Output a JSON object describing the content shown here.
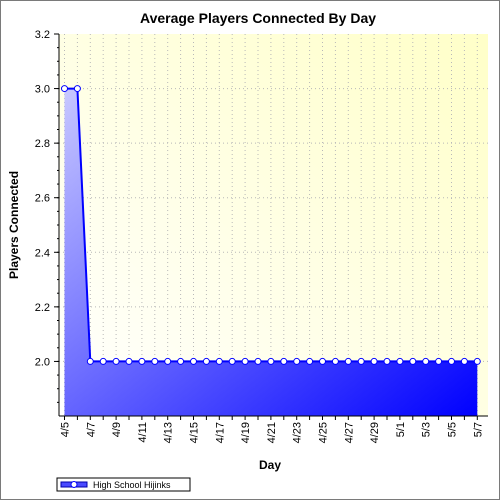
{
  "chart_data": {
    "type": "area",
    "title": "Average Players Connected By Day",
    "xlabel": "Day",
    "ylabel": "Players Connected",
    "ylim": [
      1.8,
      3.2
    ],
    "yticks": [
      "2.0",
      "2.2",
      "2.4",
      "2.6",
      "2.8",
      "3.0",
      "3.2"
    ],
    "x": [
      "4/5",
      "4/6",
      "4/7",
      "4/8",
      "4/9",
      "4/10",
      "4/11",
      "4/12",
      "4/13",
      "4/14",
      "4/15",
      "4/16",
      "4/17",
      "4/18",
      "4/19",
      "4/20",
      "4/21",
      "4/22",
      "4/23",
      "4/24",
      "4/25",
      "4/26",
      "4/27",
      "4/28",
      "4/29",
      "4/30",
      "5/1",
      "5/2",
      "5/3",
      "5/4",
      "5/5",
      "5/6",
      "5/7"
    ],
    "xtick_labels": [
      "4/5",
      "4/7",
      "4/9",
      "4/11",
      "4/13",
      "4/15",
      "4/17",
      "4/19",
      "4/21",
      "4/23",
      "4/25",
      "4/27",
      "4/29",
      "5/1",
      "5/3",
      "5/5",
      "5/7"
    ],
    "series": [
      {
        "name": "High School Hijinks",
        "values": [
          3.0,
          3.0,
          2.0,
          2.0,
          2.0,
          2.0,
          2.0,
          2.0,
          2.0,
          2.0,
          2.0,
          2.0,
          2.0,
          2.0,
          2.0,
          2.0,
          2.0,
          2.0,
          2.0,
          2.0,
          2.0,
          2.0,
          2.0,
          2.0,
          2.0,
          2.0,
          2.0,
          2.0,
          2.0,
          2.0,
          2.0,
          2.0,
          2.0
        ],
        "color": "#0000ff"
      }
    ],
    "grid": true,
    "legend": "bottom-left",
    "plot_background": [
      "#ffffe0",
      "#ffffc0"
    ]
  }
}
